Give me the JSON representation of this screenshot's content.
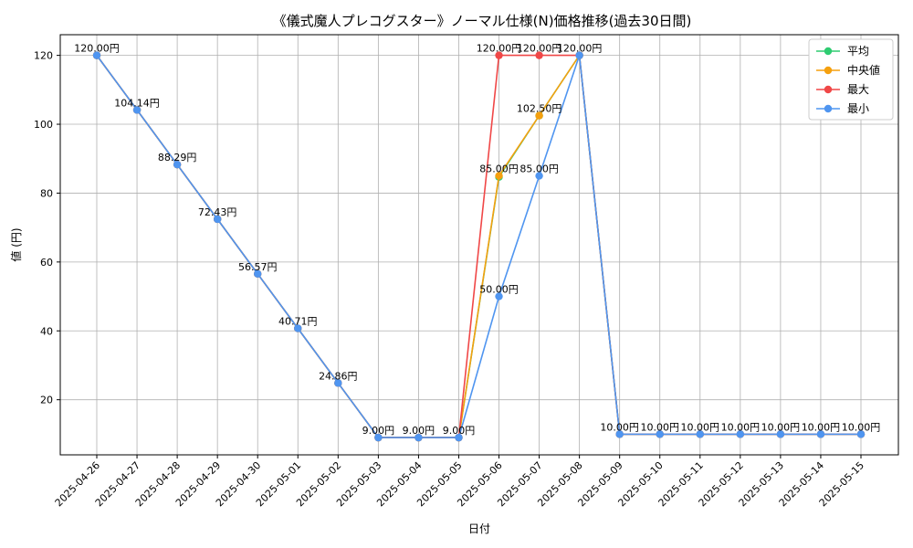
{
  "chart_data": {
    "type": "line",
    "title": "《儀式魔人プレコグスター》ノーマル仕様(N)価格推移(過去30日間)",
    "xlabel": "日付",
    "ylabel": "値 (円)",
    "ylim": [
      4,
      126
    ],
    "yticks": [
      20,
      40,
      60,
      80,
      100,
      120
    ],
    "grid": true,
    "legend_position": "top-right",
    "categories": [
      "2025-04-26",
      "2025-04-27",
      "2025-04-28",
      "2025-04-29",
      "2025-04-30",
      "2025-05-01",
      "2025-05-02",
      "2025-05-03",
      "2025-05-04",
      "2025-05-05",
      "2025-05-06",
      "2025-05-07",
      "2025-05-08",
      "2025-05-09",
      "2025-05-10",
      "2025-05-11",
      "2025-05-12",
      "2025-05-13",
      "2025-05-14",
      "2025-05-15"
    ],
    "series": [
      {
        "name": "平均",
        "color": "#2ecc71",
        "values": [
          120,
          104.14,
          88.29,
          72.43,
          56.57,
          40.71,
          24.86,
          9,
          9,
          9,
          84.67,
          102.5,
          120,
          10,
          10,
          10,
          10,
          10,
          10,
          10
        ]
      },
      {
        "name": "中央値",
        "color": "#f5a00f",
        "values": [
          120,
          104.14,
          88.29,
          72.43,
          56.57,
          40.71,
          24.86,
          9,
          9,
          9,
          85,
          102.5,
          120,
          10,
          10,
          10,
          10,
          10,
          10,
          10
        ]
      },
      {
        "name": "最大",
        "color": "#f04747",
        "values": [
          120,
          104.14,
          88.29,
          72.43,
          56.57,
          40.71,
          24.86,
          9,
          9,
          9,
          120,
          120,
          120,
          10,
          10,
          10,
          10,
          10,
          10,
          10
        ]
      },
      {
        "name": "最小",
        "color": "#4f95f0",
        "values": [
          120,
          104.14,
          88.29,
          72.43,
          56.57,
          40.71,
          24.86,
          9,
          9,
          9,
          50,
          85,
          120,
          10,
          10,
          10,
          10,
          10,
          10,
          10
        ]
      }
    ],
    "annotations": [
      {
        "index": 0,
        "value": 120,
        "text": "120.00円"
      },
      {
        "index": 1,
        "value": 104.14,
        "text": "104.14円"
      },
      {
        "index": 2,
        "value": 88.29,
        "text": "88.29円"
      },
      {
        "index": 3,
        "value": 72.43,
        "text": "72.43円"
      },
      {
        "index": 4,
        "value": 56.57,
        "text": "56.57円"
      },
      {
        "index": 5,
        "value": 40.71,
        "text": "40.71円"
      },
      {
        "index": 6,
        "value": 24.86,
        "text": "24.86円"
      },
      {
        "index": 7,
        "value": 9,
        "text": "9.00円"
      },
      {
        "index": 8,
        "value": 9,
        "text": "9.00円"
      },
      {
        "index": 9,
        "value": 9,
        "text": "9.00円"
      },
      {
        "index": 10,
        "value": 120,
        "text": "120.00円"
      },
      {
        "index": 11,
        "value": 120,
        "text": "120.00円"
      },
      {
        "index": 12,
        "value": 120,
        "text": "120.00円"
      },
      {
        "index": 10,
        "value": 85,
        "text": "85.00円"
      },
      {
        "index": 11,
        "value": 102.5,
        "text": "102.50円"
      },
      {
        "index": 11,
        "value": 85,
        "text": "85.00円"
      },
      {
        "index": 10,
        "value": 50,
        "text": "50.00円"
      },
      {
        "index": 13,
        "value": 10,
        "text": "10.00円"
      },
      {
        "index": 14,
        "value": 10,
        "text": "10.00円"
      },
      {
        "index": 15,
        "value": 10,
        "text": "10.00円"
      },
      {
        "index": 16,
        "value": 10,
        "text": "10.00円"
      },
      {
        "index": 17,
        "value": 10,
        "text": "10.00円"
      },
      {
        "index": 18,
        "value": 10,
        "text": "10.00円"
      },
      {
        "index": 19,
        "value": 10,
        "text": "10.00円"
      }
    ]
  }
}
